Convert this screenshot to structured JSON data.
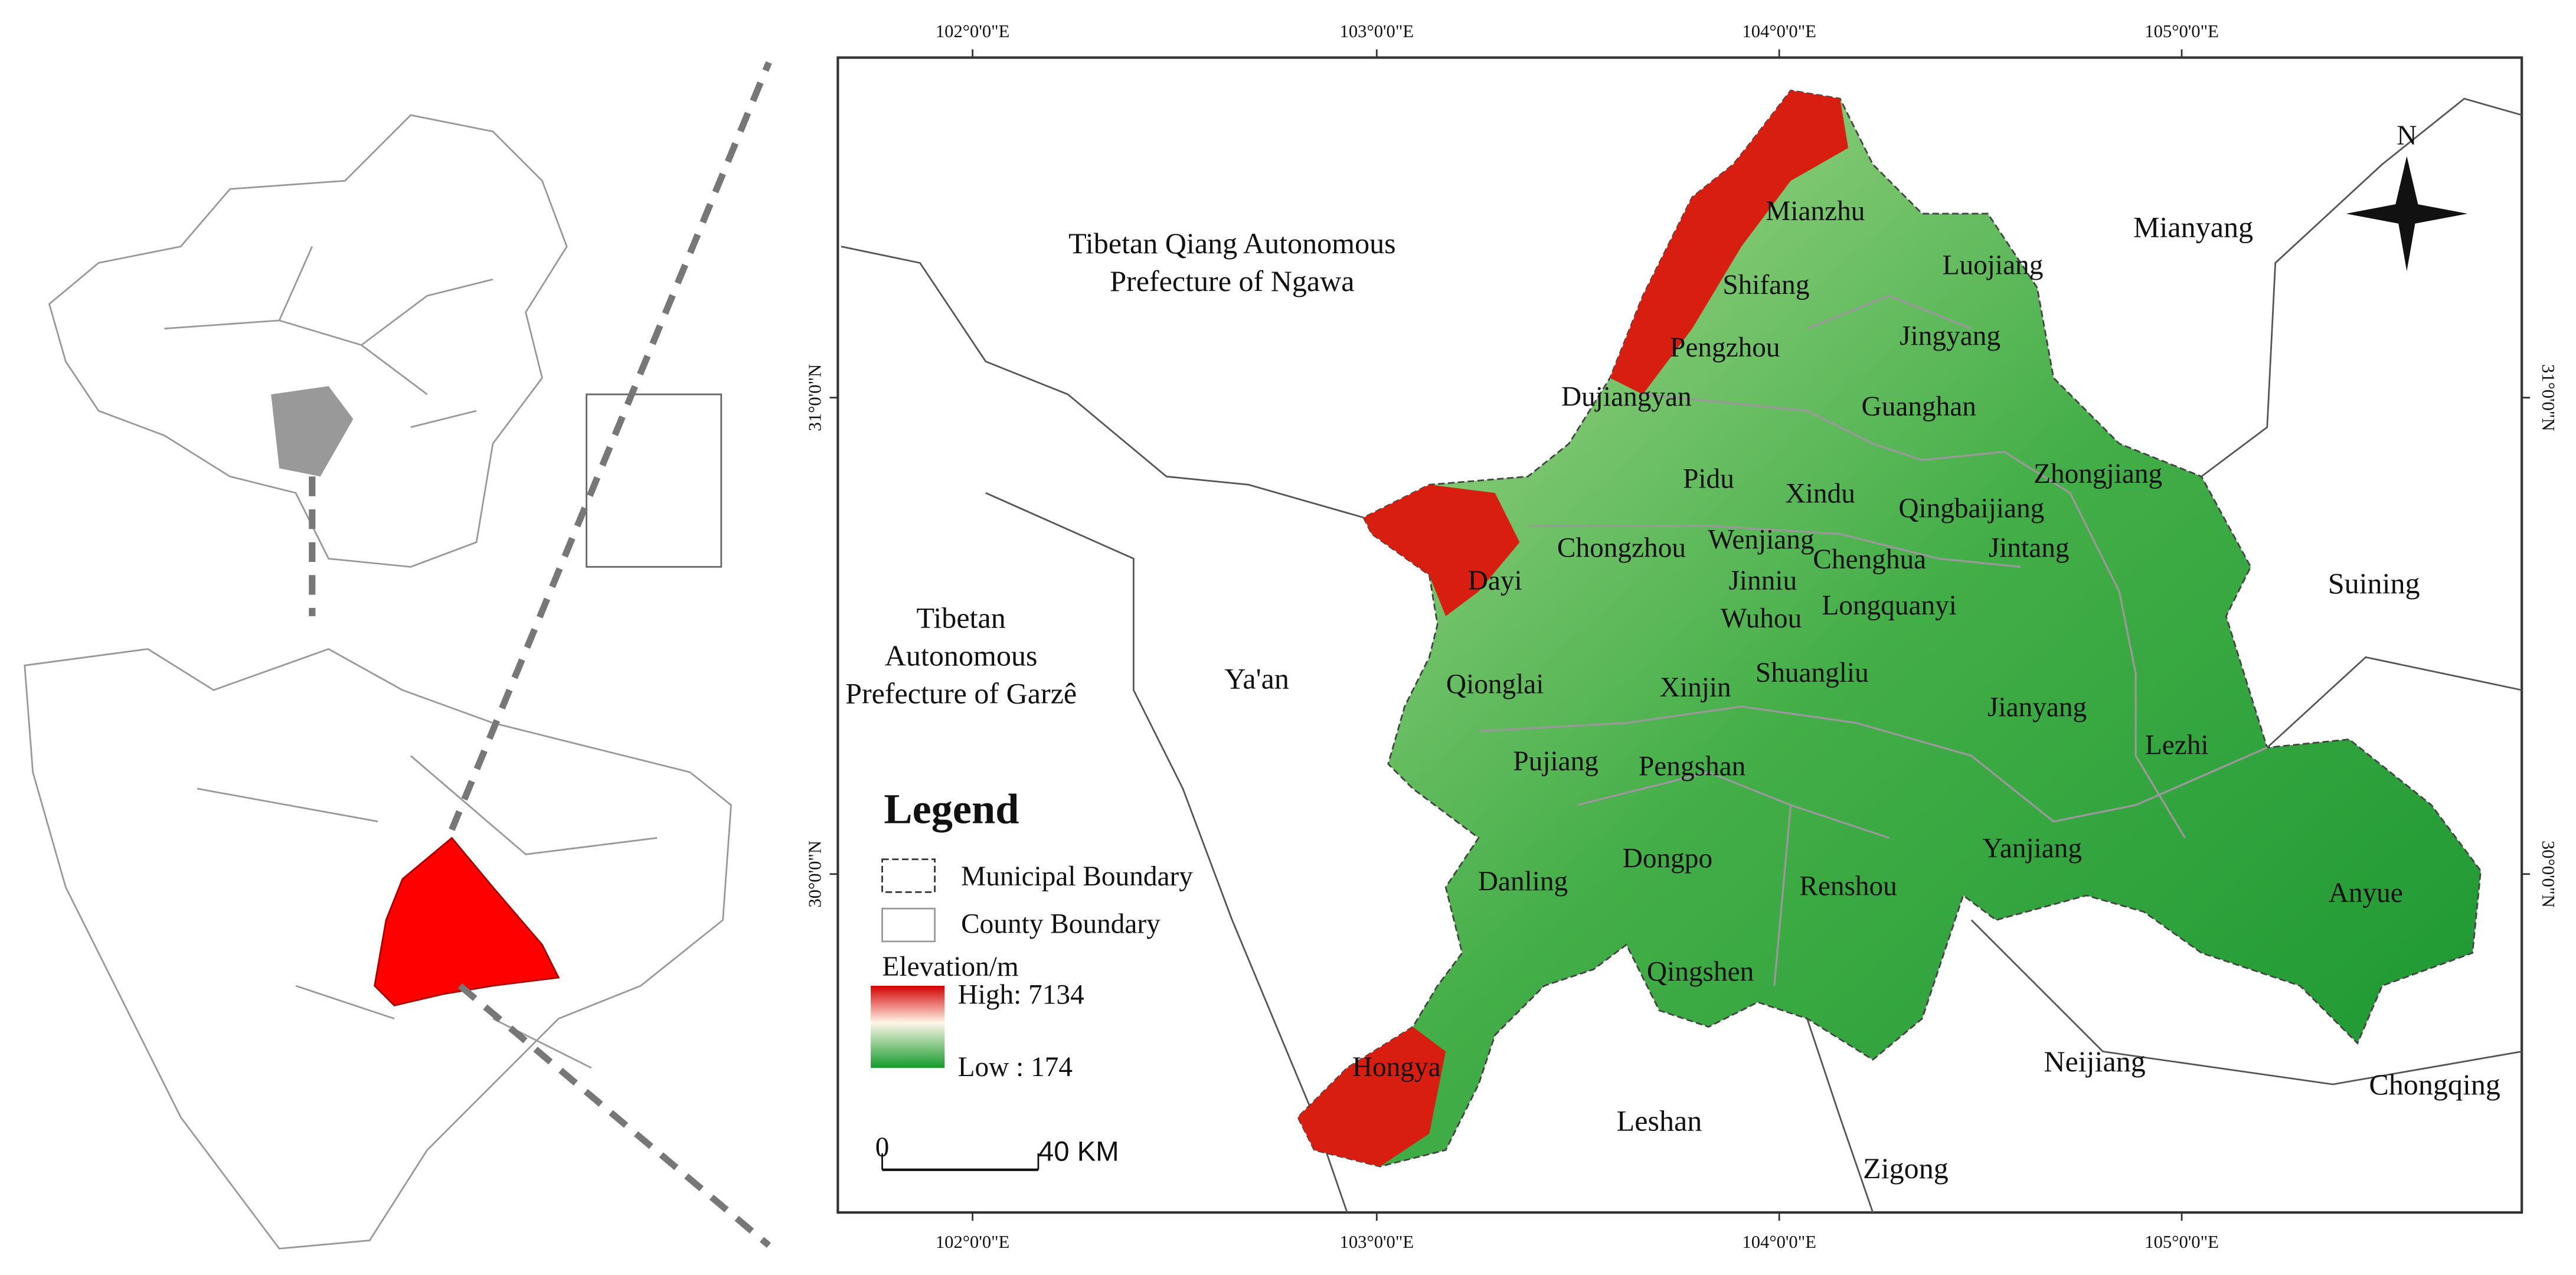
{
  "map": {
    "longitudes": [
      "102°0'0\"E",
      "103°0'0\"E",
      "104°0'0\"E",
      "105°0'0\"E"
    ],
    "latitudes": [
      "31°0'0\"N",
      "30°0'0\"N"
    ],
    "regions": [
      [
        "Tibetan Qiang Autonomous",
        "Prefecture of Ngawa"
      ],
      [
        "Tibetan",
        "Autonomous",
        "Prefecture of Garzê"
      ],
      [
        "Ya'an"
      ],
      [
        "Mianyang"
      ],
      [
        "Suining"
      ],
      [
        "Chongqing"
      ],
      [
        "Neijiang"
      ],
      [
        "Zigong"
      ],
      [
        "Leshan"
      ]
    ],
    "districts": [
      "Mianzhu",
      "Shifang",
      "Luojiang",
      "Pengzhou",
      "Jingyang",
      "Dujiangyan",
      "Guanghan",
      "Zhongjiang",
      "Pidu",
      "Xindu",
      "Qingbaijiang",
      "Chongzhou",
      "Wenjiang",
      "Jintang",
      "Chenghua",
      "Dayi",
      "Jinniu",
      "Longquanyi",
      "Wuhou",
      "Qionglai",
      "Shuangliu",
      "Xinjin",
      "Jianyang",
      "Lezhi",
      "Pujiang",
      "Pengshan",
      "Yanjiang",
      "Dongpo",
      "Danling",
      "Renshou",
      "Anyue",
      "Qingshen",
      "Hongya"
    ]
  },
  "legend": {
    "title": "Legend",
    "municipal": "Municipal  Boundary",
    "county": "County Boundary",
    "elevation_title": "Elevation/m",
    "high": "High: 7134",
    "low": "Low : 174"
  },
  "scale_bar": {
    "zero": "0",
    "distance": "40 KM"
  },
  "north": "N"
}
